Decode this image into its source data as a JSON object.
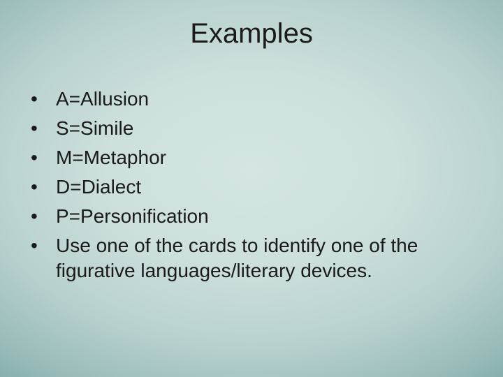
{
  "slide": {
    "title": "Examples",
    "items": [
      "A=Allusion",
      "S=Simile",
      "M=Metaphor",
      "D=Dialect",
      "P=Personification",
      "Use one of the cards to identify one of the figurative languages/literary devices."
    ],
    "title_fontsize": 40,
    "body_fontsize": 28,
    "text_color": "#1a1a1a",
    "background_gradient": {
      "type": "radial",
      "center_color": "#d4e5e3",
      "edge_color": "#5a8a88"
    }
  }
}
